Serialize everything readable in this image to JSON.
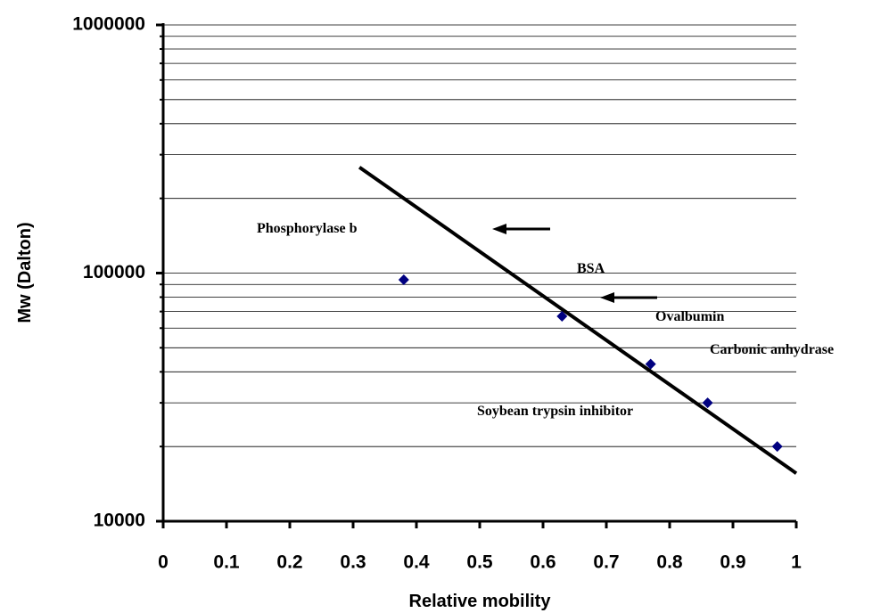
{
  "chart_data": {
    "type": "scatter",
    "x_label": "Relative mobility",
    "y_label": "Mw (Dalton)",
    "xlim": [
      0,
      1
    ],
    "xticks": [
      0,
      0.1,
      0.2,
      0.3,
      0.4,
      0.5,
      0.6,
      0.7,
      0.8,
      0.9,
      1
    ],
    "ylim": [
      10000,
      1000000
    ],
    "ylog": true,
    "yticks": [
      10000,
      100000,
      1000000
    ],
    "yticks_minor": [
      20000,
      30000,
      40000,
      50000,
      60000,
      70000,
      80000,
      90000,
      200000,
      300000,
      400000,
      500000,
      600000,
      700000,
      800000,
      900000
    ],
    "grid": true,
    "series": [
      {
        "color": "#000080",
        "x": [
          0.38,
          0.63,
          0.77,
          0.86,
          0.97
        ],
        "values": [
          94000,
          67000,
          43000,
          30000,
          20000
        ]
      }
    ],
    "trendline": {
      "color": "#000000",
      "x": [
        0.31,
        1.0
      ],
      "values": [
        267000,
        15600
      ]
    },
    "annotations": [
      "Phosphorylase b",
      "BSA",
      "Ovalbumin",
      "Carbonic anhydrase",
      "Soybean trypsin inhibitor"
    ]
  }
}
